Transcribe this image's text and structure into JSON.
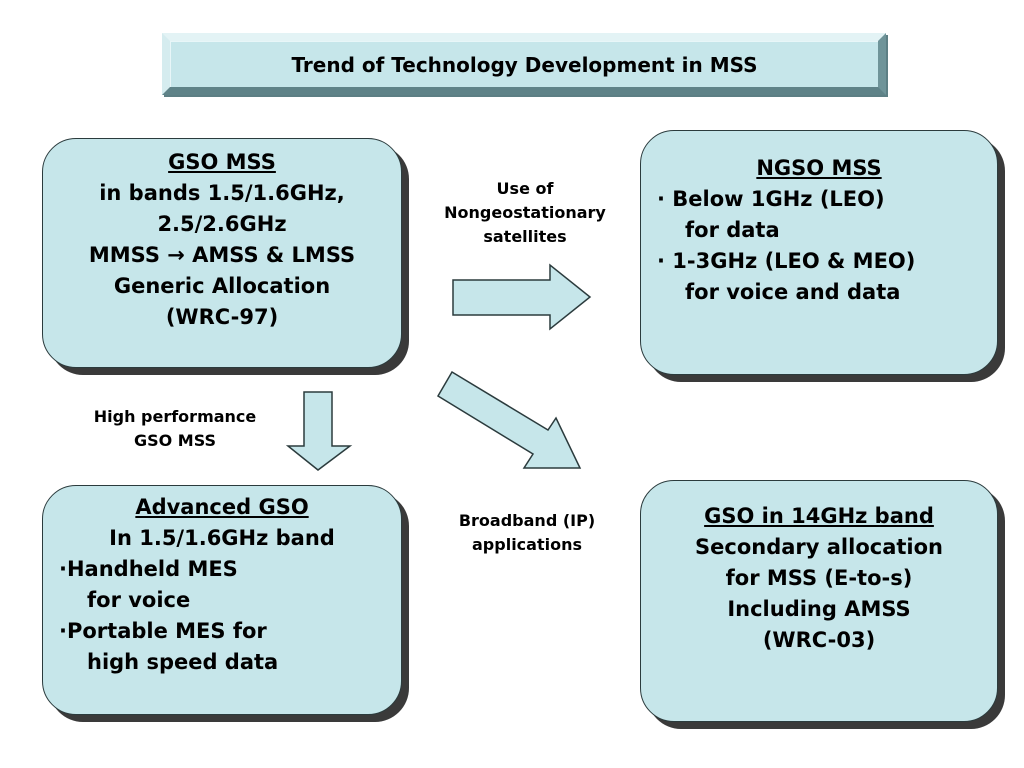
{
  "title": "Trend of Technology Development in MSS",
  "boxes": {
    "gso_mss": {
      "heading": "GSO MSS",
      "lines": [
        "in bands 1.5/1.6GHz,",
        "2.5/2.6GHz",
        "MMSS → AMSS & LMSS",
        "Generic Allocation",
        "(WRC-97)"
      ]
    },
    "ngso_mss": {
      "heading": "NGSO MSS",
      "lines": [
        "· Below 1GHz (LEO)",
        "for data",
        "· 1-3GHz (LEO & MEO)",
        "for voice and data"
      ]
    },
    "advanced_gso": {
      "heading": "Advanced GSO",
      "lines": [
        "In 1.5/1.6GHz band",
        "·Handheld MES",
        "for voice",
        "·Portable MES for",
        "high speed data"
      ]
    },
    "gso_14ghz": {
      "heading": "GSO in 14GHz band",
      "lines": [
        "Secondary allocation",
        "for MSS (E-to-s)",
        "Including AMSS",
        "(WRC-03)"
      ]
    }
  },
  "labels": {
    "use_of_ngso": [
      "Use of",
      "Nongeostationary",
      "satellites"
    ],
    "high_perf": [
      "High performance",
      "GSO MSS"
    ],
    "broadband": [
      "Broadband (IP)",
      "applications"
    ]
  },
  "colors": {
    "box_fill": "#c6e6ea",
    "title_bevel": "#8fb8bd",
    "shadow": "#3a3a3a"
  }
}
